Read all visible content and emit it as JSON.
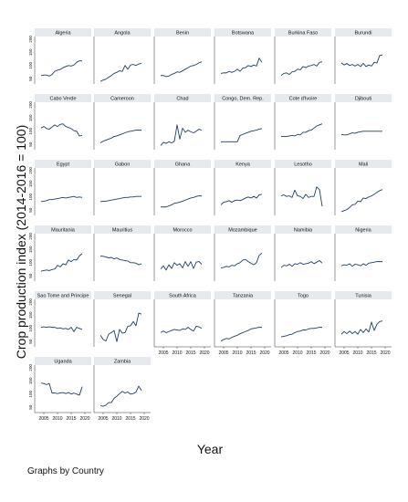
{
  "chart_data": {
    "type": "line",
    "ylabel": "Crop production index (2014-2016 = 100)",
    "xlabel": "Year",
    "note": "Graphs by Country",
    "xlim": [
      2003,
      2021
    ],
    "x_ticks": [
      2005,
      2010,
      2015,
      2020
    ],
    "x_tick_labels": [
      "2005",
      "2010",
      "2015",
      "2020"
    ],
    "ylim": [
      30,
      210
    ],
    "y_ticks": [
      50,
      100,
      150,
      200
    ],
    "y_tick_labels": [
      "50",
      "100",
      "150",
      "200"
    ],
    "line_color": "#1f3f66",
    "panel_header_color": "#e6eaef",
    "x": [
      2004,
      2005,
      2006,
      2007,
      2008,
      2009,
      2010,
      2011,
      2012,
      2013,
      2014,
      2015,
      2016,
      2017,
      2018,
      2019
    ],
    "panels": [
      {
        "country": "Algeria",
        "values": [
          62,
          64,
          64,
          60,
          66,
          78,
          82,
          85,
          92,
          96,
          100,
          98,
          102,
          112,
          118,
          117
        ]
      },
      {
        "country": "Angola",
        "values": [
          40,
          45,
          48,
          55,
          62,
          70,
          74,
          80,
          78,
          100,
          86,
          102,
          104,
          100,
          106,
          108
        ]
      },
      {
        "country": "Benin",
        "values": [
          62,
          62,
          58,
          60,
          66,
          70,
          76,
          74,
          80,
          86,
          92,
          98,
          100,
          104,
          110,
          114
        ]
      },
      {
        "country": "Botswana",
        "values": [
          70,
          72,
          72,
          78,
          74,
          78,
          86,
          78,
          90,
          92,
          100,
          96,
          102,
          98,
          128,
          112
        ]
      },
      {
        "country": "Burkina Faso",
        "values": [
          62,
          70,
          72,
          66,
          76,
          78,
          86,
          84,
          96,
          92,
          98,
          100,
          104,
          98,
          112,
          114
        ]
      },
      {
        "country": "Burundi",
        "values": [
          110,
          102,
          108,
          100,
          104,
          98,
          104,
          96,
          108,
          96,
          102,
          98,
          112,
          110,
          138,
          140
        ]
      },
      {
        "country": "Cabo Verde",
        "values": [
          112,
          118,
          110,
          108,
          116,
          124,
          118,
          126,
          128,
          118,
          114,
          110,
          102,
          100,
          82,
          84
        ]
      },
      {
        "country": "Cameroon",
        "values": [
          56,
          62,
          66,
          70,
          74,
          80,
          82,
          86,
          90,
          94,
          98,
          100,
          102,
          104,
          104,
          104
        ]
      },
      {
        "country": "Chad",
        "values": [
          46,
          58,
          54,
          60,
          56,
          62,
          124,
          70,
          112,
          96,
          104,
          98,
          94,
          100,
          108,
          104
        ]
      },
      {
        "country": "Congo, Dem. Rep.",
        "values": [
          60,
          60,
          60,
          60,
          60,
          60,
          60,
          84,
          88,
          92,
          96,
          100,
          102,
          104,
          108,
          110
        ]
      },
      {
        "country": "Cote d'Ivoire",
        "values": [
          80,
          80,
          80,
          82,
          84,
          82,
          88,
          86,
          96,
          96,
          102,
          104,
          112,
          120,
          124,
          128
        ]
      },
      {
        "country": "Djibouti",
        "values": [
          88,
          86,
          86,
          90,
          94,
          92,
          96,
          98,
          100,
          100,
          100,
          100,
          100,
          100,
          100,
          100
        ]
      },
      {
        "country": "Egypt",
        "values": [
          82,
          84,
          86,
          90,
          90,
          92,
          94,
          96,
          98,
          96,
          98,
          100,
          102,
          98,
          100,
          98
        ]
      },
      {
        "country": "Gabon",
        "values": [
          82,
          84,
          84,
          86,
          88,
          90,
          92,
          94,
          96,
          98,
          98,
          100,
          100,
          102,
          102,
          102
        ]
      },
      {
        "country": "Ghana",
        "values": [
          62,
          62,
          62,
          66,
          70,
          76,
          78,
          80,
          84,
          88,
          92,
          96,
          98,
          102,
          104,
          104
        ]
      },
      {
        "country": "Kenya",
        "values": [
          70,
          80,
          82,
          86,
          80,
          86,
          88,
          86,
          90,
          96,
          100,
          96,
          102,
          96,
          108,
          110
        ]
      },
      {
        "country": "Lesotho",
        "values": [
          104,
          108,
          102,
          104,
          98,
          126,
          104,
          102,
          94,
          110,
          98,
          102,
          102,
          138,
          128,
          64
        ]
      },
      {
        "country": "Mali",
        "values": [
          44,
          48,
          52,
          60,
          70,
          72,
          84,
          82,
          96,
          94,
          100,
          104,
          110,
          118,
          124,
          128
        ]
      },
      {
        "country": "Mauritania",
        "values": [
          68,
          70,
          72,
          70,
          74,
          76,
          90,
          84,
          96,
          92,
          110,
          104,
          112,
          110,
          126,
          134
        ]
      },
      {
        "country": "Mauritius",
        "values": [
          126,
          124,
          122,
          118,
          120,
          114,
          118,
          112,
          110,
          108,
          106,
          100,
          100,
          98,
          92,
          96
        ]
      },
      {
        "country": "Morocco",
        "values": [
          76,
          88,
          72,
          92,
          78,
          100,
          90,
          96,
          80,
          104,
          86,
          104,
          78,
          102,
          104,
          94
        ]
      },
      {
        "country": "Mozambique",
        "values": [
          80,
          82,
          86,
          84,
          90,
          88,
          96,
          100,
          110,
          112,
          104,
          98,
          92,
          100,
          128,
          136
        ]
      },
      {
        "country": "Namibia",
        "values": [
          82,
          90,
          88,
          94,
          86,
          96,
          94,
          100,
          94,
          96,
          98,
          104,
          96,
          102,
          108,
          98
        ]
      },
      {
        "country": "Nigeria",
        "values": [
          88,
          92,
          90,
          96,
          86,
          94,
          92,
          88,
          96,
          90,
          98,
          100,
          102,
          104,
          104,
          104
        ]
      },
      {
        "country": "Sao Tome and Principe",
        "values": [
          104,
          106,
          104,
          106,
          104,
          104,
          100,
          102,
          98,
          100,
          96,
          104,
          88,
          104,
          100,
          96
        ]
      },
      {
        "country": "Senegal",
        "values": [
          74,
          58,
          52,
          78,
          84,
          92,
          50,
          96,
          82,
          84,
          108,
          110,
          126,
          110,
          158,
          154
        ]
      },
      {
        "country": "South Africa",
        "values": [
          84,
          90,
          84,
          88,
          92,
          96,
          94,
          92,
          98,
          96,
          104,
          96,
          90,
          108,
          106,
          100
        ]
      },
      {
        "country": "Tanzania",
        "values": [
          52,
          58,
          62,
          60,
          66,
          70,
          74,
          80,
          84,
          88,
          92,
          98,
          100,
          102,
          104,
          104
        ]
      },
      {
        "country": "Togo",
        "values": [
          68,
          70,
          72,
          76,
          78,
          84,
          88,
          90,
          94,
          94,
          98,
          100,
          100,
          102,
          104,
          104
        ]
      },
      {
        "country": "Tunisia",
        "values": [
          78,
          88,
          80,
          90,
          80,
          88,
          78,
          96,
          84,
          98,
          86,
          124,
          92,
          116,
          126,
          128
        ]
      },
      {
        "country": "Uganda",
        "values": [
          142,
          140,
          136,
          140,
          104,
          104,
          102,
          104,
          106,
          102,
          106,
          100,
          104,
          100,
          96,
          128
        ]
      },
      {
        "country": "Zambia",
        "values": [
          56,
          54,
          58,
          68,
          68,
          84,
          92,
          102,
          110,
          104,
          108,
          100,
          102,
          108,
          130,
          114
        ]
      }
    ]
  }
}
